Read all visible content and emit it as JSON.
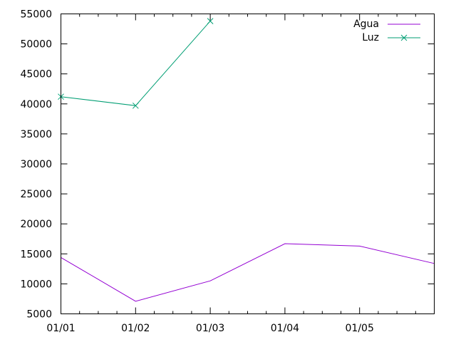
{
  "chart_data": {
    "type": "line",
    "categories": [
      "01/01",
      "01/02",
      "01/03",
      "01/04",
      "01/05"
    ],
    "x_tick_labels": [
      "01/01",
      "01/02",
      "01/03",
      "01/04",
      "01/05"
    ],
    "y_tick_labels": [
      "5000",
      "10000",
      "15000",
      "20000",
      "25000",
      "30000",
      "35000",
      "40000",
      "45000",
      "50000",
      "55000"
    ],
    "ylim": [
      5000,
      55000
    ],
    "xlim": [
      0,
      5
    ],
    "grid": false,
    "legend_position": "top-right",
    "title": "",
    "xlabel": "",
    "ylabel": "",
    "series": [
      {
        "name": "Agua",
        "color": "#9400d3",
        "marker": "none",
        "x": [
          0,
          1,
          2,
          3,
          4,
          5
        ],
        "values": [
          14400,
          7100,
          10500,
          16700,
          16300,
          13400
        ]
      },
      {
        "name": "Luz",
        "color": "#009e73",
        "marker": "x",
        "x": [
          0,
          1,
          2
        ],
        "values": [
          41200,
          39700,
          53800
        ]
      }
    ]
  }
}
